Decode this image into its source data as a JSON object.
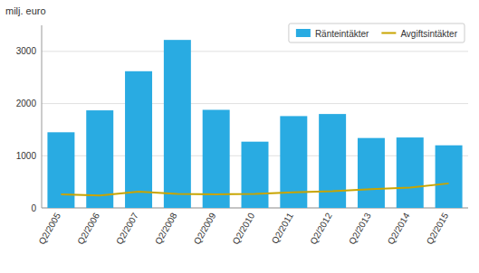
{
  "chart_data": {
    "type": "bar",
    "ylabel": "milj. euro",
    "categories": [
      "Q2/2005",
      "Q2/2006",
      "Q2/2007",
      "Q2/2008",
      "Q2/2009",
      "Q2/2010",
      "Q2/2011",
      "Q2/2012",
      "Q2/2013",
      "Q2/2014",
      "Q2/2015"
    ],
    "series": [
      {
        "name": "Ränteintäkter",
        "type": "bar",
        "color": "#29ABE2",
        "values": [
          1450,
          1870,
          2620,
          3220,
          1880,
          1270,
          1760,
          1800,
          1340,
          1350,
          1200
        ]
      },
      {
        "name": "Avgiftsintäkter",
        "type": "line",
        "color": "#C8A400",
        "values": [
          260,
          240,
          310,
          270,
          260,
          270,
          300,
          320,
          360,
          390,
          470
        ]
      }
    ],
    "ylim": [
      0,
      3500
    ],
    "yticks": [
      0,
      1000,
      2000,
      3000
    ],
    "grid": true,
    "legend": "top-right"
  }
}
